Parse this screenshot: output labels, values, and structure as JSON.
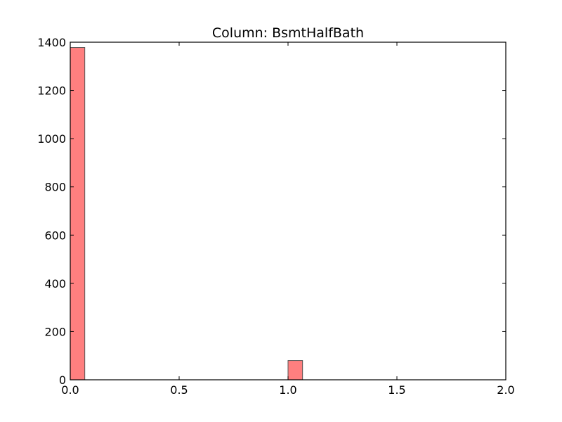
{
  "chart_data": {
    "type": "bar",
    "title": "Column: BsmtHalfBath",
    "xlabel": "",
    "ylabel": "",
    "xlim": [
      0,
      2
    ],
    "ylim": [
      0,
      1400
    ],
    "x_ticks": [
      "0.0",
      "0.5",
      "1.0",
      "1.5",
      "2.0"
    ],
    "x_tick_values": [
      0,
      0.5,
      1,
      1.5,
      2
    ],
    "y_ticks": [
      "0",
      "200",
      "400",
      "600",
      "800",
      "1000",
      "1200",
      "1400"
    ],
    "y_tick_values": [
      0,
      200,
      400,
      600,
      800,
      1000,
      1200,
      1400
    ],
    "bins": [
      {
        "x0": 0.0,
        "x1": 0.0667,
        "value": 1378
      },
      {
        "x0": 1.0,
        "x1": 1.0667,
        "value": 80
      }
    ],
    "grid": false,
    "bar_color": "#ff7f7f",
    "bar_edge_color": "#555555"
  }
}
